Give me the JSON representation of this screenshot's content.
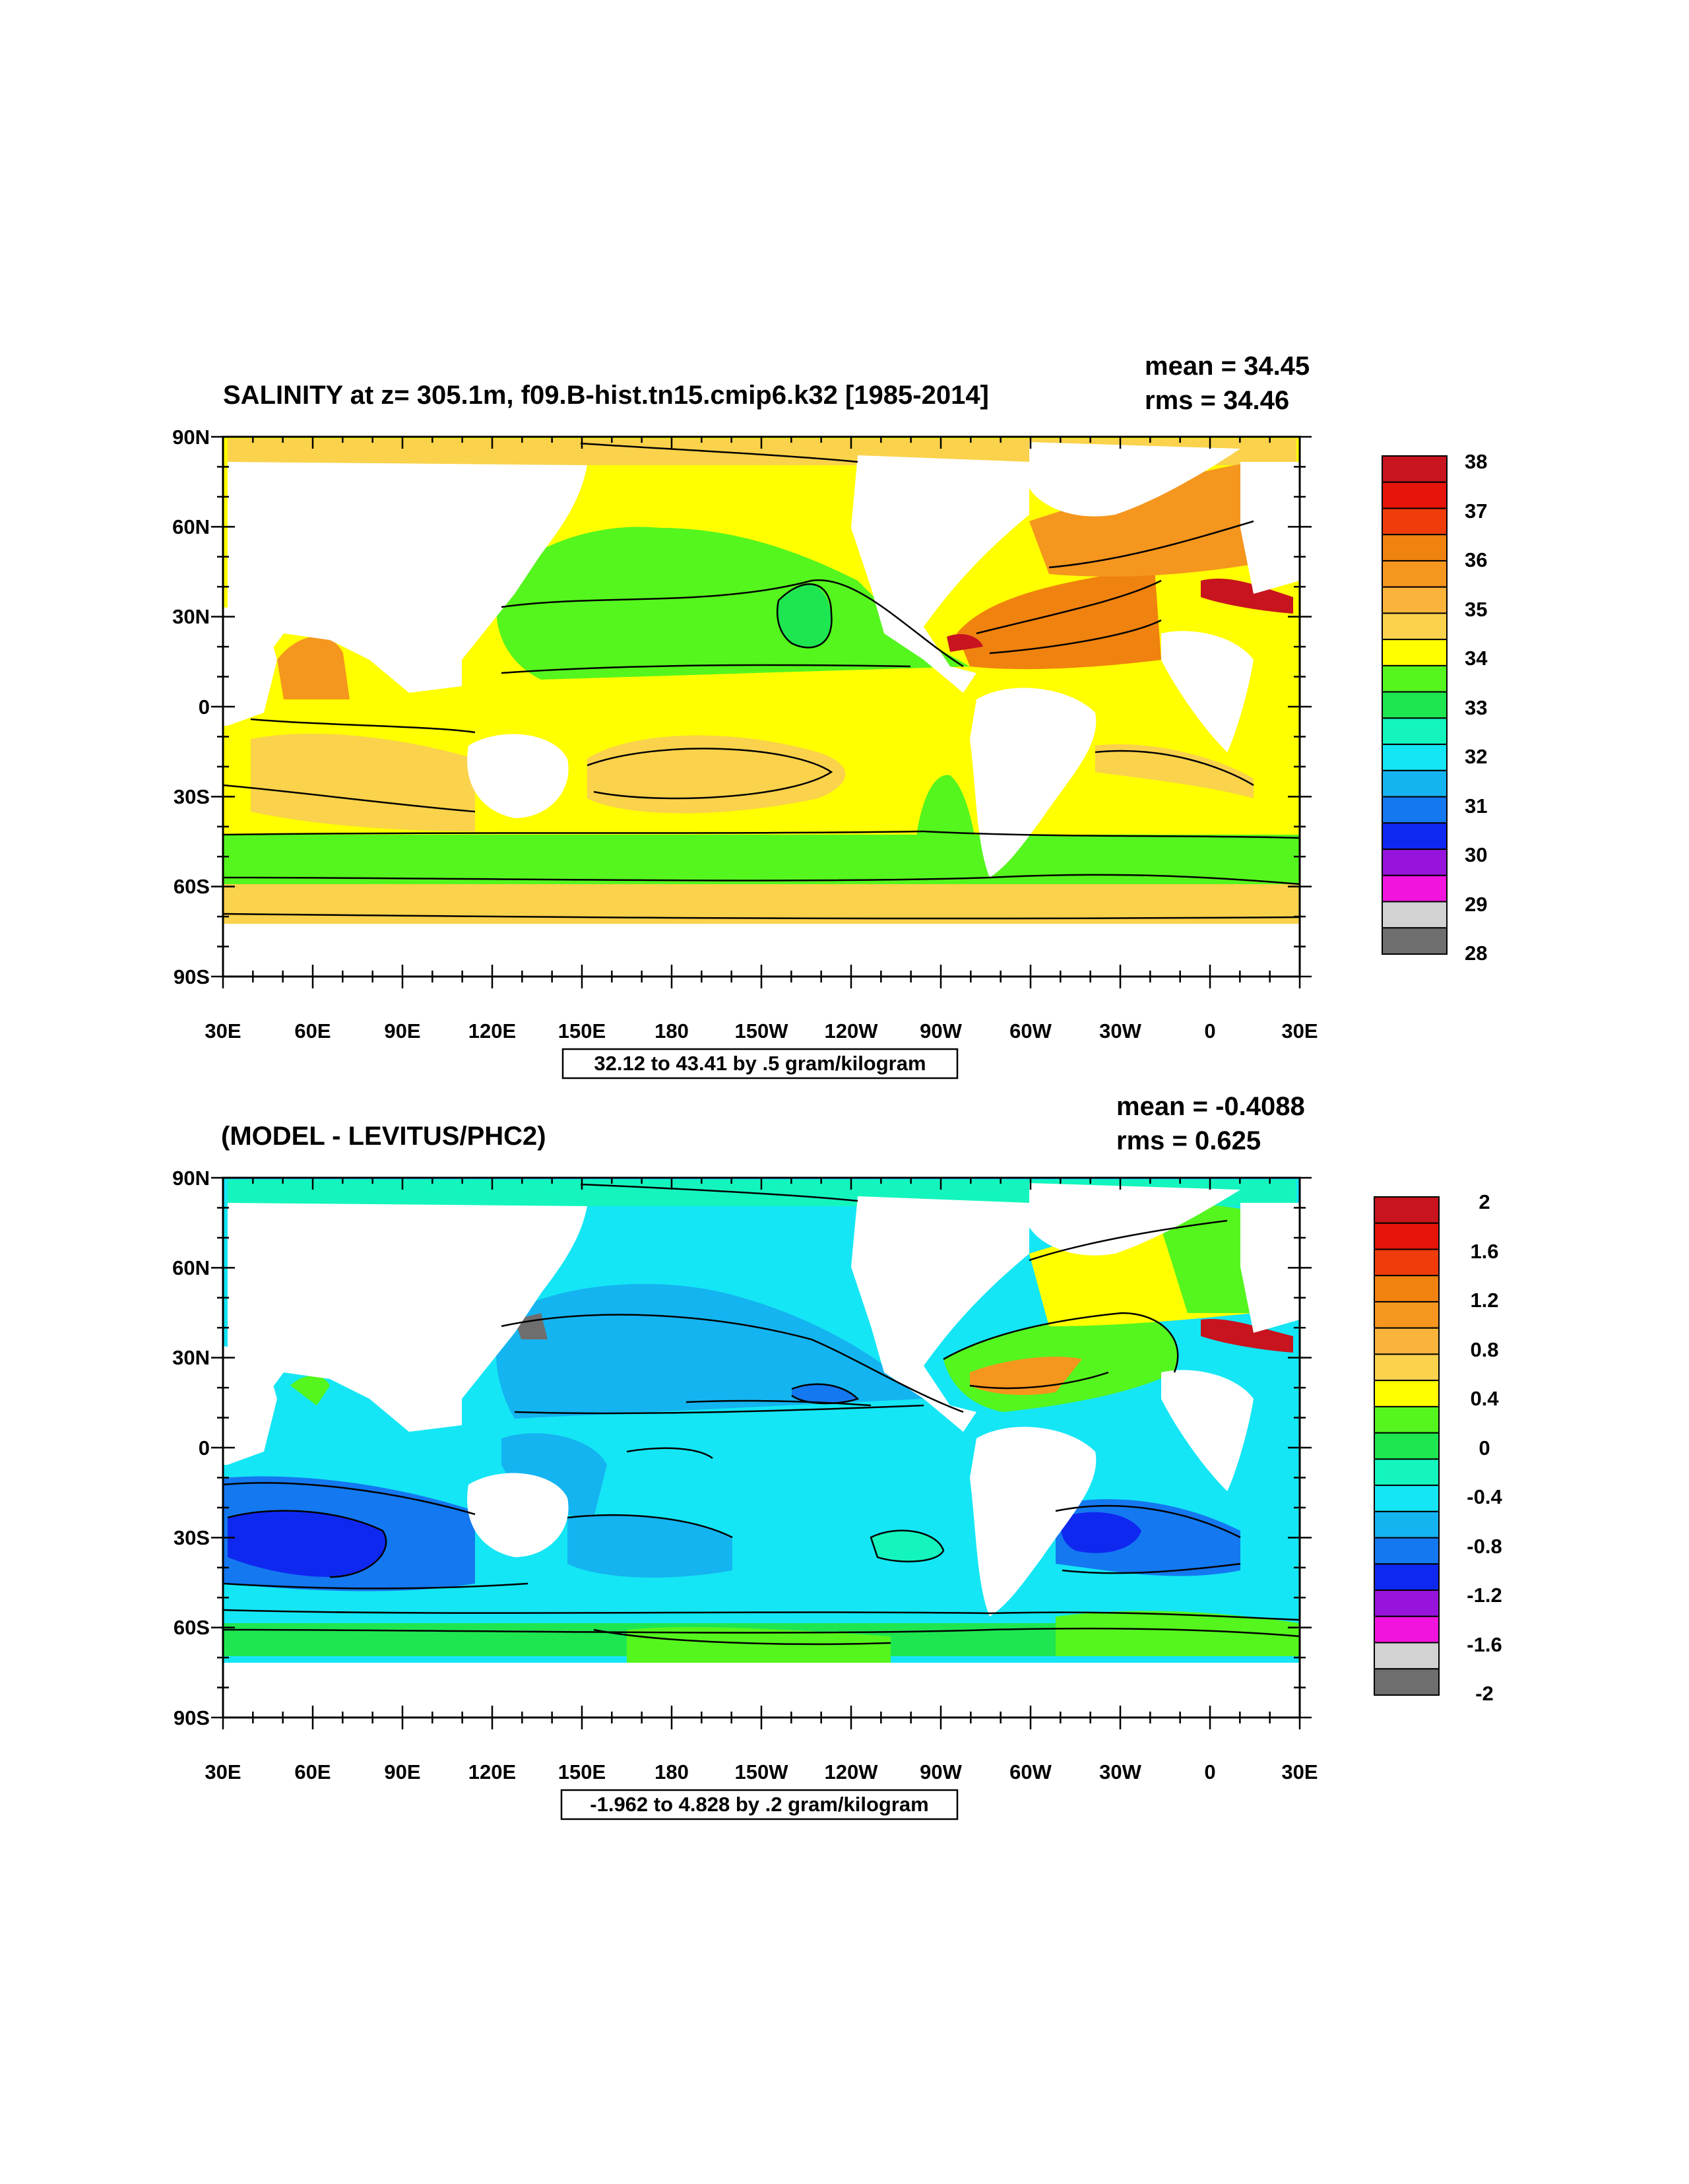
{
  "panels": [
    {
      "title": "SALINITY at z= 305.1m, f09.B-hist.tn15.cmip6.k32 [1985-2014]",
      "mean_label": "mean = 34.45",
      "rms_label": "rms = 34.46",
      "contour_info": "32.12 to 43.41 by .5 gram/kilogram",
      "colorbar_labels": [
        "38",
        "37",
        "36",
        "35",
        "34",
        "33",
        "32",
        "31",
        "30",
        "29",
        "28"
      ],
      "colorbar_colors": [
        "#c8141e",
        "#e6140a",
        "#f03c0a",
        "#f0820f",
        "#f5961e",
        "#fab43c",
        "#fad24b",
        "#ffff00",
        "#55f51e",
        "#1ee650",
        "#14f5be",
        "#14e6f5",
        "#14b4f0",
        "#1478f0",
        "#0f28f0",
        "#9614dc",
        "#f014dc",
        "#d2d2d2",
        "#6e6e6e"
      ],
      "stats": {
        "mean": 34.45,
        "rms": 34.46
      }
    },
    {
      "title": "(MODEL - LEVITUS/PHC2)",
      "mean_label": "mean = -0.4088",
      "rms_label": "rms = 0.625",
      "contour_info": "-1.962 to 4.828 by .2 gram/kilogram",
      "colorbar_labels": [
        "2",
        "1.6",
        "1.2",
        "0.8",
        "0.4",
        "0",
        "-0.4",
        "-0.8",
        "-1.2",
        "-1.6",
        "-2"
      ],
      "colorbar_colors": [
        "#c8141e",
        "#e6140a",
        "#f03c0a",
        "#f0820f",
        "#f5961e",
        "#fab43c",
        "#fad24b",
        "#ffff00",
        "#55f51e",
        "#1ee650",
        "#14f5be",
        "#14e6f5",
        "#14b4f0",
        "#1478f0",
        "#0f28f0",
        "#9614dc",
        "#f014dc",
        "#d2d2d2",
        "#6e6e6e"
      ],
      "stats": {
        "mean": -0.4088,
        "rms": 0.625
      }
    }
  ],
  "axes": {
    "lat_labels": [
      "90N",
      "60N",
      "30N",
      "0",
      "30S",
      "60S",
      "90S"
    ],
    "lon_labels": [
      "30E",
      "60E",
      "90E",
      "120E",
      "150E",
      "180",
      "150W",
      "120W",
      "90W",
      "60W",
      "30W",
      "0",
      "30E"
    ]
  },
  "colors": {
    "land": "#ffffff",
    "contour": "#000000"
  }
}
